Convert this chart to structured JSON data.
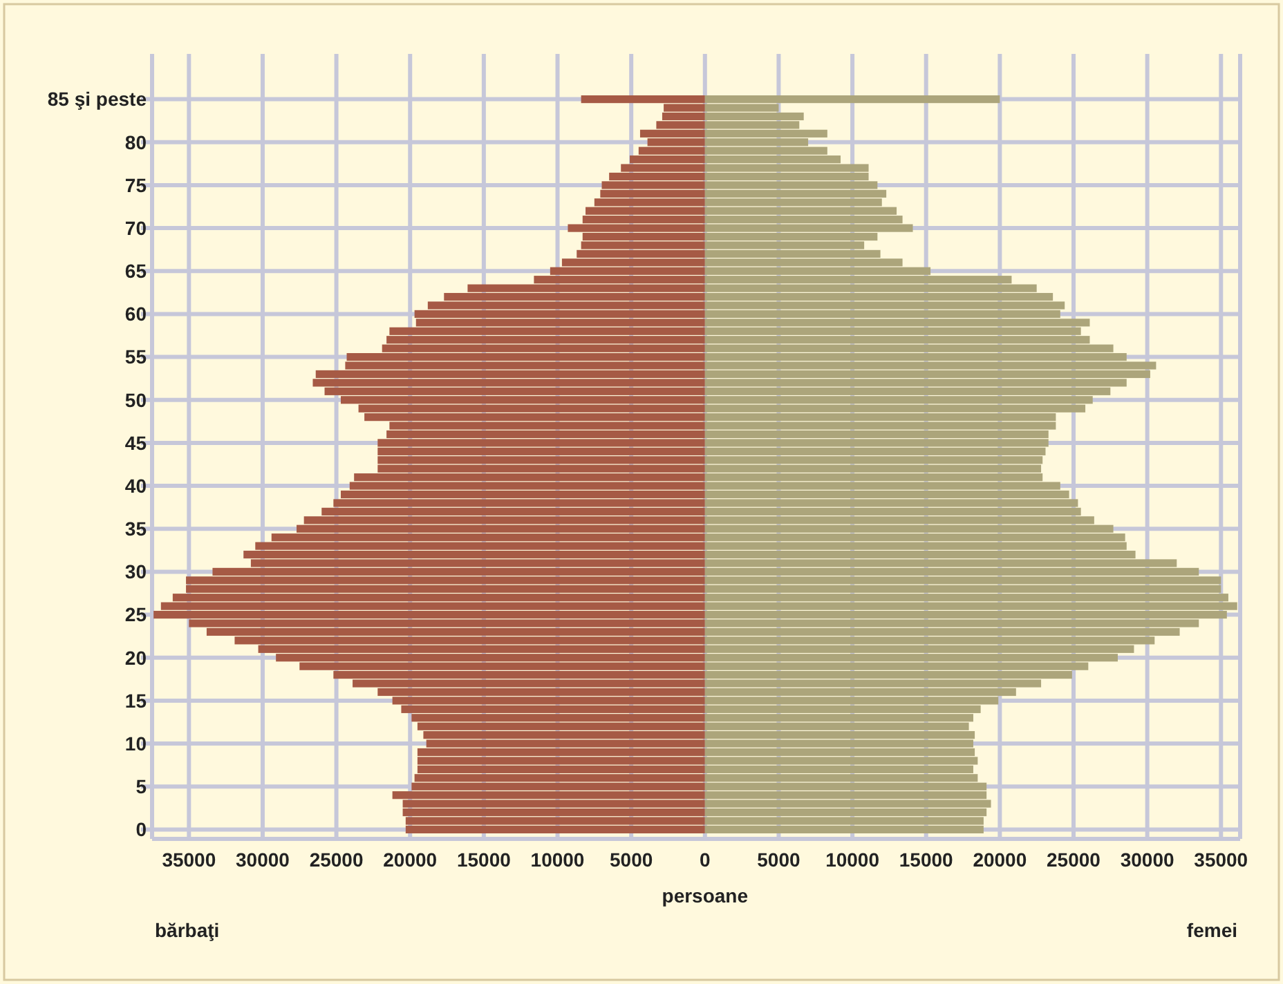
{
  "chart_data": {
    "type": "bar",
    "orientation": "horizontal",
    "xlabel": "persoane",
    "categories": [
      "85 şi peste",
      null,
      null,
      null,
      null,
      "80",
      null,
      null,
      null,
      null,
      "75",
      null,
      null,
      null,
      null,
      "70",
      null,
      null,
      null,
      null,
      "65",
      null,
      null,
      null,
      null,
      "60",
      null,
      null,
      null,
      null,
      "55",
      null,
      null,
      null,
      null,
      "50",
      null,
      null,
      null,
      null,
      "45",
      null,
      null,
      null,
      null,
      "40",
      null,
      null,
      null,
      null,
      "35",
      null,
      null,
      null,
      null,
      "30",
      null,
      null,
      null,
      null,
      "25",
      null,
      null,
      null,
      null,
      "20",
      null,
      null,
      null,
      null,
      "15",
      null,
      null,
      null,
      null,
      "10",
      null,
      null,
      null,
      null,
      "5",
      null,
      null,
      null,
      null,
      "0"
    ],
    "series": [
      {
        "color": "#a65a45",
        "values": [
          -8400,
          -2800,
          -2900,
          -3300,
          -4400,
          -3900,
          -4500,
          -5100,
          -5700,
          -6500,
          -7000,
          -7100,
          -7500,
          -8100,
          -8300,
          -9300,
          -8300,
          -8400,
          -8700,
          -9700,
          -10500,
          -11600,
          -16100,
          -17700,
          -18800,
          -19700,
          -19600,
          -21400,
          -21600,
          -21900,
          -24300,
          -24400,
          -26400,
          -26600,
          -25800,
          -24700,
          -23500,
          -23100,
          -21400,
          -21600,
          -22200,
          -22200,
          -22200,
          -22200,
          -23800,
          -24100,
          -24700,
          -25200,
          -26000,
          -27200,
          -27700,
          -29400,
          -30500,
          -31300,
          -30800,
          -33400,
          -35200,
          -35200,
          -36100,
          -36900,
          -37400,
          -35000,
          -33800,
          -31900,
          -30300,
          -29100,
          -27500,
          -25200,
          -23900,
          -22200,
          -21200,
          -20600,
          -19900,
          -19500,
          -19100,
          -18900,
          -19500,
          -19500,
          -19500,
          -19700,
          -19900,
          -21200,
          -20500,
          -20500,
          -20300,
          -20300
        ]
      },
      {
        "color": "#aca57b",
        "values": [
          20000,
          5000,
          6700,
          6400,
          8300,
          7000,
          8300,
          9200,
          11100,
          11100,
          11700,
          12300,
          12000,
          13000,
          13400,
          14100,
          11700,
          10800,
          11900,
          13400,
          15300,
          20800,
          22500,
          23600,
          24400,
          24100,
          26100,
          25500,
          26100,
          27700,
          28600,
          30600,
          30200,
          28600,
          27500,
          26300,
          25800,
          23800,
          23800,
          23300,
          23300,
          23100,
          22900,
          22800,
          22900,
          24100,
          24700,
          25300,
          25500,
          26400,
          27700,
          28500,
          28600,
          29200,
          32000,
          33500,
          35000,
          35000,
          35500,
          36100,
          35400,
          33500,
          32200,
          30500,
          29100,
          28000,
          26000,
          24900,
          22800,
          21100,
          19900,
          18700,
          18200,
          17900,
          18300,
          18200,
          18300,
          18500,
          18200,
          18500,
          19100,
          19100,
          19400,
          19100,
          18900,
          18900
        ]
      }
    ],
    "xlim": [
      -37500,
      36300
    ],
    "xticks": [
      {
        "value": -35000,
        "label": "35000"
      },
      {
        "value": -30000,
        "label": "30000"
      },
      {
        "value": -25000,
        "label": "25000"
      },
      {
        "value": -20000,
        "label": "20000"
      },
      {
        "value": -15000,
        "label": "15000"
      },
      {
        "value": -10000,
        "label": "10000"
      },
      {
        "value": -5000,
        "label": "5000"
      },
      0,
      5000,
      10000,
      15000,
      20000,
      25000,
      30000,
      35000
    ],
    "stacked": true,
    "annotations": [
      "bărbaţi",
      "femei"
    ],
    "grid": true
  }
}
